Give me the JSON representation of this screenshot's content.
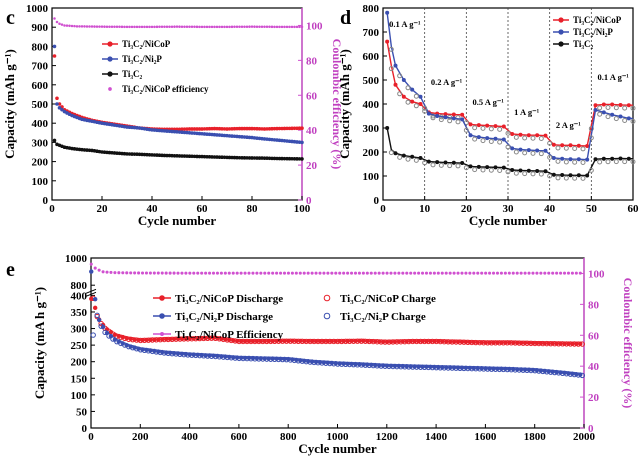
{
  "colors": {
    "red": "#e8202a",
    "blue": "#3a4fb0",
    "black": "#111111",
    "pink": "#d050d0"
  },
  "panels": {
    "c": {
      "letter": "c",
      "xlabel": "Cycle number",
      "ylabel": "Capacity (mAh g⁻¹)",
      "ylabel_right": "Coulombic efficiency (%)",
      "x_ticks": [
        "0",
        "20",
        "40",
        "60",
        "80",
        "100"
      ],
      "y_ticks": [
        "0",
        "100",
        "200",
        "300",
        "400",
        "500",
        "600",
        "700",
        "800",
        "900",
        "1000"
      ],
      "y2_ticks": [
        "0",
        "20",
        "40",
        "60",
        "80",
        "100"
      ],
      "legend": [
        "Ti₃C₂/NiCoP",
        "Ti₃C₂/Ni₂P",
        "Ti₃C₂",
        "Ti₃C₂/NiCoP efficiency"
      ]
    },
    "d": {
      "letter": "d",
      "xlabel": "Cycle number",
      "ylabel": "Capacity (mAh g⁻¹)",
      "x_ticks": [
        "0",
        "10",
        "20",
        "30",
        "40",
        "50",
        "60"
      ],
      "y_ticks": [
        "0",
        "100",
        "200",
        "300",
        "400",
        "500",
        "600",
        "700",
        "800"
      ],
      "legend": [
        "Ti₃C₂/NiCoP",
        "Ti₃C₂/Ni₂P",
        "Ti₃C₂"
      ],
      "rate_labels": [
        "0.1 A g⁻¹",
        "0.2 A g⁻¹",
        "0.5 A g⁻¹",
        "1 A g⁻¹",
        "2 A g⁻¹",
        "0.1 A g⁻¹"
      ]
    },
    "e": {
      "letter": "e",
      "xlabel": "Cycle number",
      "ylabel": "Capacity (mA h g⁻¹)",
      "ylabel_right": "Coulombic efficiency (%)",
      "x_ticks": [
        "0",
        "200",
        "400",
        "600",
        "800",
        "1000",
        "1200",
        "1400",
        "1600",
        "1800",
        "2000"
      ],
      "y_ticks": [
        "0",
        "50",
        "100",
        "150",
        "200",
        "250",
        "300",
        "350",
        "400",
        "800",
        "1000"
      ],
      "y2_ticks": [
        "0",
        "20",
        "40",
        "60",
        "80",
        "100"
      ],
      "legend": [
        "Ti₃C₂/NiCoP Discharge",
        "Ti₃C₂/NiCoP Charge",
        "Ti₃C₂/Ni₂P Discharge",
        "Ti₃C₂/Ni₂P Charge",
        "Ti₃C₂/NiCoP Efficiency"
      ]
    }
  },
  "chart_data": [
    {
      "type": "scatter",
      "panel": "c",
      "xlabel": "Cycle number",
      "ylabel": "Capacity (mAh g⁻¹)",
      "y2label": "Coulombic efficiency (%)",
      "xlim": [
        0,
        100
      ],
      "ylim": [
        0,
        1000
      ],
      "y2lim": [
        0,
        110
      ],
      "series": [
        {
          "name": "Ti₃C₂/NiCoP",
          "x": [
            1,
            2,
            3,
            5,
            8,
            12,
            16,
            20,
            25,
            30,
            35,
            40,
            45,
            50,
            55,
            60,
            65,
            70,
            75,
            80,
            85,
            90,
            95,
            100
          ],
          "y": [
            750,
            530,
            500,
            470,
            450,
            430,
            415,
            405,
            395,
            385,
            375,
            370,
            368,
            368,
            370,
            370,
            372,
            370,
            372,
            372,
            370,
            372,
            373,
            374
          ]
        },
        {
          "name": "Ti₃C₂/Ni₂P",
          "x": [
            1,
            2,
            3,
            5,
            8,
            12,
            16,
            20,
            25,
            30,
            35,
            40,
            45,
            50,
            55,
            60,
            65,
            70,
            75,
            80,
            85,
            90,
            95,
            100
          ],
          "y": [
            800,
            500,
            480,
            460,
            440,
            420,
            410,
            400,
            390,
            380,
            375,
            365,
            360,
            355,
            350,
            345,
            340,
            335,
            330,
            325,
            318,
            312,
            306,
            300
          ]
        },
        {
          "name": "Ti₃C₂",
          "x": [
            1,
            2,
            3,
            5,
            8,
            12,
            16,
            20,
            25,
            30,
            35,
            40,
            45,
            50,
            55,
            60,
            65,
            70,
            75,
            80,
            85,
            90,
            95,
            100
          ],
          "y": [
            310,
            290,
            285,
            275,
            268,
            262,
            258,
            250,
            245,
            240,
            238,
            235,
            232,
            230,
            228,
            226,
            224,
            222,
            220,
            219,
            218,
            216,
            215,
            214
          ]
        },
        {
          "name": "Ti₃C₂/NiCoP efficiency",
          "axis": "right",
          "x": [
            1,
            2,
            3,
            5,
            10,
            20,
            30,
            40,
            50,
            60,
            70,
            80,
            90,
            100
          ],
          "y": [
            104,
            102,
            101,
            100,
            99.5,
            99.3,
            99.2,
            99.2,
            99.3,
            99.2,
            99.2,
            99.3,
            99.2,
            99.2
          ]
        }
      ]
    },
    {
      "type": "line",
      "panel": "d",
      "xlabel": "Cycle number",
      "ylabel": "Capacity (mAh g⁻¹)",
      "xlim": [
        0,
        60
      ],
      "ylim": [
        0,
        800
      ],
      "series": [
        {
          "name": "Ti₃C₂/NiCoP",
          "x": [
            1,
            2,
            3,
            5,
            7,
            9,
            11,
            13,
            15,
            17,
            19,
            21,
            23,
            25,
            27,
            29,
            31,
            33,
            35,
            37,
            39,
            41,
            43,
            45,
            47,
            49,
            51,
            53,
            55,
            57,
            59
          ],
          "y": [
            660,
            560,
            480,
            430,
            410,
            400,
            365,
            360,
            358,
            356,
            355,
            315,
            312,
            310,
            308,
            306,
            275,
            272,
            270,
            270,
            268,
            230,
            228,
            228,
            226,
            225,
            395,
            398,
            398,
            396,
            395
          ]
        },
        {
          "name": "Ti₃C₂/Ni₂P",
          "x": [
            1,
            2,
            3,
            5,
            7,
            9,
            11,
            13,
            15,
            17,
            19,
            21,
            23,
            25,
            27,
            29,
            31,
            33,
            35,
            37,
            39,
            41,
            43,
            45,
            47,
            49,
            51,
            53,
            55,
            57,
            59
          ],
          "y": [
            780,
            640,
            560,
            500,
            460,
            430,
            360,
            350,
            345,
            340,
            336,
            270,
            262,
            258,
            255,
            252,
            215,
            210,
            208,
            206,
            205,
            175,
            172,
            170,
            170,
            168,
            375,
            365,
            355,
            348,
            340
          ]
        },
        {
          "name": "Ti₃C₂",
          "x": [
            1,
            2,
            3,
            5,
            7,
            9,
            11,
            13,
            15,
            17,
            19,
            21,
            23,
            25,
            27,
            29,
            31,
            33,
            35,
            37,
            39,
            41,
            43,
            45,
            47,
            49,
            51,
            53,
            55,
            57,
            59
          ],
          "y": [
            300,
            210,
            195,
            185,
            180,
            175,
            160,
            158,
            156,
            155,
            154,
            140,
            138,
            137,
            136,
            135,
            125,
            123,
            122,
            121,
            120,
            105,
            104,
            103,
            103,
            102,
            170,
            172,
            172,
            173,
            172
          ]
        }
      ]
    },
    {
      "type": "scatter",
      "panel": "e",
      "xlabel": "Cycle number",
      "ylabel": "Capacity (mA h g⁻¹)",
      "y2label": "Coulombic efficiency (%)",
      "xlim": [
        0,
        2000
      ],
      "ylim": [
        0,
        1000
      ],
      "y2lim": [
        0,
        110
      ],
      "series": [
        {
          "name": "Ti₃C₂/NiCoP Discharge",
          "x": [
            1,
            10,
            30,
            60,
            100,
            150,
            200,
            300,
            400,
            500,
            600,
            700,
            800,
            900,
            1000,
            1100,
            1200,
            1300,
            1400,
            1500,
            1600,
            1700,
            1800,
            1900,
            2000
          ],
          "y": [
            700,
            380,
            330,
            300,
            280,
            270,
            265,
            268,
            270,
            272,
            262,
            262,
            263,
            262,
            262,
            263,
            260,
            262,
            262,
            260,
            258,
            258,
            256,
            255,
            254
          ]
        },
        {
          "name": "Ti₃C₂/NiCoP Charge",
          "x": [
            1,
            10,
            30,
            60,
            100,
            150,
            200,
            300,
            400,
            500,
            600,
            700,
            800,
            900,
            1000,
            1100,
            1200,
            1300,
            1400,
            1500,
            1600,
            1700,
            1800,
            1900,
            2000
          ],
          "y": [
            560,
            370,
            325,
            298,
            278,
            268,
            264,
            267,
            269,
            271,
            261,
            261,
            262,
            261,
            261,
            262,
            259,
            261,
            261,
            259,
            257,
            257,
            255,
            254,
            253
          ]
        },
        {
          "name": "Ti₃C₂/Ni₂P Discharge",
          "x": [
            1,
            10,
            30,
            60,
            100,
            150,
            200,
            300,
            400,
            500,
            600,
            700,
            800,
            900,
            1000,
            1100,
            1200,
            1300,
            1400,
            1500,
            1600,
            1700,
            1800,
            1900,
            2000
          ],
          "y": [
            900,
            420,
            330,
            290,
            265,
            248,
            238,
            228,
            222,
            218,
            212,
            210,
            208,
            200,
            195,
            192,
            188,
            186,
            184,
            182,
            180,
            178,
            175,
            168,
            160
          ]
        },
        {
          "name": "Ti₃C₂/Ni₂P Charge",
          "x": [
            1,
            10,
            30,
            60,
            100,
            150,
            200,
            300,
            400,
            500,
            600,
            700,
            800,
            900,
            1000,
            1100,
            1200,
            1300,
            1400,
            1500,
            1600,
            1700,
            1800,
            1900,
            2000
          ],
          "y": [
            700,
            400,
            320,
            285,
            262,
            246,
            236,
            226,
            220,
            216,
            210,
            208,
            206,
            198,
            193,
            190,
            186,
            184,
            182,
            180,
            178,
            176,
            173,
            166,
            158
          ]
        },
        {
          "name": "Ti₃C₂/NiCoP Efficiency",
          "axis": "right",
          "x": [
            1,
            20,
            50,
            100,
            200,
            400,
            600,
            800,
            1000,
            1200,
            1400,
            1600,
            1800,
            2000
          ],
          "y": [
            106,
            103,
            101,
            100.5,
            100.3,
            100.2,
            100.2,
            100.2,
            100.2,
            100.2,
            100.2,
            100.2,
            100.2,
            100.2
          ]
        }
      ]
    }
  ]
}
